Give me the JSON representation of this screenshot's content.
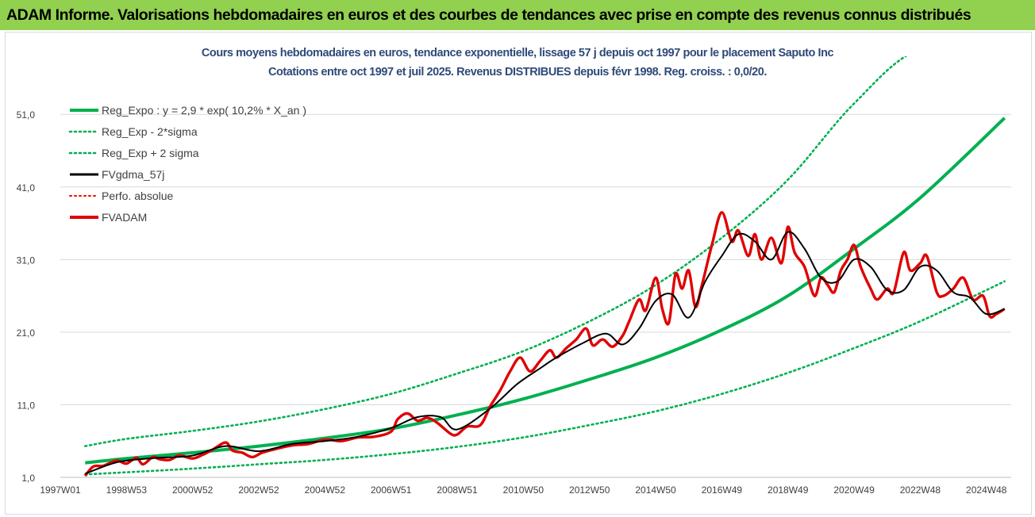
{
  "banner": {
    "text": "ADAM Informe. Valorisations hebdomadaires en euros et des courbes de tendances avec prise en compte des revenus connus distribués",
    "color": "#92d050"
  },
  "chart_data": {
    "type": "line",
    "title": "Cours moyens hebdomadaires en euros, tendance exponentielle, lissage 57 j depuis oct 1997 pour le placement Saputo Inc",
    "subtitle": "Cotations entre oct 1997 et juil 2025. Revenus DISTRIBUES depuis févr 1998. Reg. croiss. : 0,0/20.",
    "xlabel": "",
    "ylabel": "",
    "xlim": [
      1997.0,
      2025.75
    ],
    "ylim": [
      1.0,
      59.0
    ],
    "y_ticks": [
      "1,0",
      "11,0",
      "21,0",
      "31,0",
      "41,0",
      "51,0"
    ],
    "y_tick_values": [
      1,
      11,
      21,
      31,
      41,
      51
    ],
    "x_ticks": [
      "1997W01",
      "1998W53",
      "2000W52",
      "2002W52",
      "2004W52",
      "2006W51",
      "2008W51",
      "2010W50",
      "2012W50",
      "2014W50",
      "2016W49",
      "2018W49",
      "2020W49",
      "2022W48",
      "2024W48"
    ],
    "x_tick_values": [
      1997.0,
      1999.0,
      2001.0,
      2003.0,
      2005.0,
      2007.0,
      2009.0,
      2011.0,
      2013.0,
      2015.0,
      2017.0,
      2019.0,
      2021.0,
      2023.0,
      2025.0
    ],
    "grid": "horizontal",
    "legend_position": "top-left",
    "x_start": 1997.75,
    "x_end": 2025.55,
    "series": [
      {
        "name": "Reg_Expo : y = 2,9 * exp( 10,2% *  X_an )",
        "color": "#00b050",
        "style": "solid-thick",
        "x": [
          1997.75,
          1999,
          2001,
          2003,
          2005,
          2007,
          2009,
          2011,
          2013,
          2015,
          2017,
          2019,
          2021,
          2023,
          2025.55
        ],
        "y": [
          3.0,
          3.6,
          4.4,
          5.3,
          6.4,
          7.7,
          9.6,
          11.8,
          14.5,
          17.5,
          21.3,
          26.0,
          32.5,
          39.5,
          50.5
        ]
      },
      {
        "name": "Reg_Exp - 2*sigma",
        "color": "#00b050",
        "style": "dotted",
        "x": [
          1997.75,
          1999,
          2001,
          2003,
          2005,
          2007,
          2009,
          2011,
          2013,
          2015,
          2017,
          2019,
          2021,
          2023,
          2025.55
        ],
        "y": [
          1.4,
          1.7,
          2.2,
          2.8,
          3.4,
          4.2,
          5.2,
          6.5,
          8.2,
          10.1,
          12.5,
          15.4,
          18.8,
          22.5,
          28.0
        ]
      },
      {
        "name": "Reg_Exp + 2 sigma",
        "color": "#00b050",
        "style": "dotted",
        "x": [
          1997.75,
          1999,
          2001,
          2003,
          2005,
          2007,
          2009,
          2011,
          2013,
          2015,
          2017,
          2019,
          2021,
          2023,
          2025.55
        ],
        "y": [
          5.3,
          6.3,
          7.4,
          8.7,
          10.4,
          12.5,
          15.3,
          18.4,
          22.5,
          27.5,
          34.0,
          42.0,
          52.5,
          60.0,
          60.0
        ]
      },
      {
        "name": "FVgdma_57j",
        "color": "#000000",
        "style": "solid",
        "x": [
          1997.75,
          1998.5,
          1999,
          2000,
          2001,
          2002,
          2003,
          2004,
          2005,
          2006,
          2007,
          2007.8,
          2008.5,
          2009,
          2010,
          2010.8,
          2011.5,
          2012,
          2012.8,
          2013.5,
          2014,
          2014.5,
          2015,
          2015.5,
          2016,
          2016.5,
          2017,
          2017.5,
          2018,
          2018.5,
          2019,
          2019.5,
          2020,
          2020.5,
          2021,
          2021.5,
          2022,
          2022.5,
          2023,
          2023.5,
          2024,
          2024.5,
          2025,
          2025.55
        ],
        "y": [
          1.5,
          2.8,
          3.3,
          3.7,
          4.0,
          5.3,
          4.6,
          5.6,
          6.0,
          6.6,
          7.8,
          9.3,
          9.3,
          7.6,
          10.5,
          13.8,
          16.0,
          17.5,
          19.5,
          20.8,
          19.3,
          21.5,
          25.3,
          26.2,
          23.0,
          28.0,
          31.5,
          34.5,
          33.5,
          31.0,
          34.8,
          32.5,
          28.5,
          28.0,
          31.0,
          30.0,
          26.8,
          26.8,
          30.0,
          29.5,
          26.5,
          25.8,
          23.5,
          24.2
        ]
      },
      {
        "name": "Perfo. absolue",
        "color": "#ff0000",
        "style": "dotted",
        "x": [],
        "y": []
      },
      {
        "name": "FVADAM",
        "color": "#e00000",
        "style": "solid-thick",
        "x": [
          1997.75,
          1998.0,
          1998.3,
          1998.7,
          1999.0,
          1999.3,
          1999.5,
          1999.8,
          2000.0,
          2000.3,
          2000.6,
          2001.0,
          2001.3,
          2001.6,
          2002.0,
          2002.2,
          2002.5,
          2002.8,
          2003.1,
          2003.5,
          2004.0,
          2004.5,
          2005.0,
          2005.5,
          2006.0,
          2006.5,
          2007.0,
          2007.2,
          2007.5,
          2007.8,
          2008.1,
          2008.4,
          2008.8,
          2009.0,
          2009.3,
          2009.7,
          2010.0,
          2010.3,
          2010.6,
          2010.9,
          2011.2,
          2011.5,
          2011.8,
          2012.0,
          2012.3,
          2012.6,
          2012.9,
          2013.1,
          2013.4,
          2013.7,
          2014.0,
          2014.2,
          2014.5,
          2014.7,
          2015.0,
          2015.2,
          2015.4,
          2015.6,
          2015.8,
          2016.0,
          2016.2,
          2016.4,
          2016.7,
          2017.0,
          2017.3,
          2017.5,
          2017.8,
          2018.0,
          2018.2,
          2018.5,
          2018.8,
          2019.0,
          2019.2,
          2019.5,
          2019.8,
          2020.0,
          2020.2,
          2020.4,
          2020.6,
          2020.8,
          2021.0,
          2021.2,
          2021.5,
          2021.7,
          2022.0,
          2022.2,
          2022.5,
          2022.7,
          2023.0,
          2023.2,
          2023.5,
          2023.7,
          2024.0,
          2024.3,
          2024.6,
          2024.9,
          2025.1,
          2025.3,
          2025.55
        ],
        "y": [
          1.2,
          2.5,
          2.6,
          3.3,
          2.9,
          3.7,
          2.8,
          3.8,
          3.5,
          3.4,
          4.0,
          3.6,
          4.1,
          4.8,
          5.8,
          4.7,
          4.4,
          3.8,
          4.4,
          4.9,
          5.4,
          5.6,
          6.2,
          6.0,
          6.5,
          6.6,
          7.3,
          9.0,
          9.8,
          8.8,
          9.2,
          8.5,
          7.0,
          6.9,
          8.0,
          8.2,
          10.8,
          13.0,
          15.6,
          17.5,
          15.6,
          17.0,
          18.5,
          17.5,
          18.8,
          20.0,
          21.5,
          19.2,
          20.0,
          19.0,
          20.5,
          22.5,
          25.5,
          24.0,
          28.5,
          24.2,
          22.3,
          29.0,
          27.0,
          29.5,
          24.5,
          27.5,
          33.0,
          37.5,
          33.5,
          35.0,
          31.5,
          34.5,
          31.0,
          34.0,
          30.5,
          35.5,
          32.0,
          30.0,
          26.0,
          28.5,
          27.5,
          26.5,
          29.5,
          31.0,
          33.0,
          30.0,
          27.0,
          25.5,
          27.0,
          26.5,
          32.0,
          29.5,
          30.5,
          31.5,
          26.5,
          26.0,
          27.0,
          28.5,
          25.5,
          26.0,
          23.2,
          23.5,
          24.2
        ]
      }
    ]
  }
}
